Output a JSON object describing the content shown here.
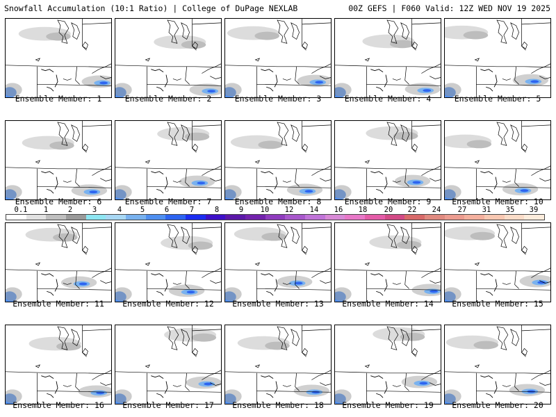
{
  "header": {
    "left": "Snowfall Accumulation (10:1 Ratio) | College of DuPage NEXLAB",
    "right": "00Z GEFS | F060 Valid: 12Z WED NOV 19 2025"
  },
  "colorbar": {
    "labels": [
      "0.1",
      "1",
      "2",
      "3",
      "4",
      "5",
      "6",
      "7",
      "8",
      "9",
      "10",
      "12",
      "14",
      "16",
      "18",
      "20",
      "22",
      "24",
      "27",
      "31",
      "35",
      "39"
    ],
    "colors": [
      "#ffffff",
      "#e2e2e2",
      "#bfbfbf",
      "#9a9a9a",
      "#8ee6f2",
      "#a8d8f4",
      "#79b2ef",
      "#4f8ff0",
      "#2d64f0",
      "#1b2df0",
      "#3e10c8",
      "#5b18a8",
      "#7222ac",
      "#8f3cbe",
      "#a858cc",
      "#c074d8",
      "#d88ad6",
      "#e878c8",
      "#e45ca8",
      "#d24a86",
      "#d86a6a",
      "#e08a80",
      "#ec9c90",
      "#f4b09e",
      "#f8c8b2",
      "#fadcc8",
      "#fcecdc"
    ]
  },
  "members": [
    {
      "label": "Ensemble Member: 1"
    },
    {
      "label": "Ensemble Member: 2"
    },
    {
      "label": "Ensemble Member: 3"
    },
    {
      "label": "Ensemble Member: 4"
    },
    {
      "label": "Ensemble Member: 5"
    },
    {
      "label": "Ensemble Member: 6"
    },
    {
      "label": "Ensemble Member: 7"
    },
    {
      "label": "Ensemble Member: 8"
    },
    {
      "label": "Ensemble Member: 9"
    },
    {
      "label": "Ensemble Member: 10"
    },
    {
      "label": "Ensemble Member: 11"
    },
    {
      "label": "Ensemble Member: 12"
    },
    {
      "label": "Ensemble Member: 13"
    },
    {
      "label": "Ensemble Member: 14"
    },
    {
      "label": "Ensemble Member: 15"
    },
    {
      "label": "Ensemble Member: 16"
    },
    {
      "label": "Ensemble Member: 17"
    },
    {
      "label": "Ensemble Member: 18"
    },
    {
      "label": "Ensemble Member: 19"
    },
    {
      "label": "Ensemble Member: 20"
    }
  ]
}
